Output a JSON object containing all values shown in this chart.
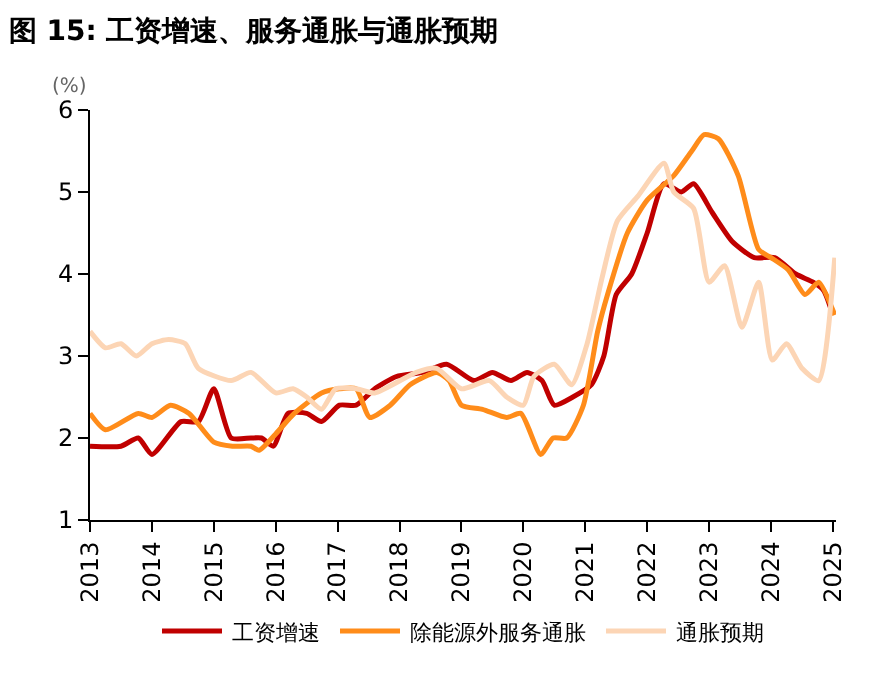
{
  "chart_data": {
    "type": "line",
    "title": "图 15: 工资增速、服务通胀与通胀预期",
    "ylabel": "(%)",
    "xlim": [
      2013,
      2025.05
    ],
    "xticks": [
      2013,
      2014,
      2015,
      2016,
      2017,
      2018,
      2019,
      2020,
      2021,
      2022,
      2023,
      2024,
      2025
    ],
    "ylim": [
      1,
      6
    ],
    "yticks": [
      1,
      2,
      3,
      4,
      5,
      6
    ],
    "legend": "bottom",
    "marker": "none",
    "line_style": "solid",
    "series": [
      {
        "name": "工资增速",
        "color": "#c00000",
        "x": [
          2013,
          2013.5,
          2013.78,
          2014.0,
          2014.47,
          2014.75,
          2015.0,
          2015.28,
          2015.6,
          2015.77,
          2015.96,
          2016.2,
          2016.5,
          2016.74,
          2017.03,
          2017.3,
          2017.6,
          2017.95,
          2018.37,
          2018.76,
          2019.2,
          2019.5,
          2019.8,
          2020.06,
          2020.3,
          2020.5,
          2020.8,
          2021.1,
          2021.3,
          2021.5,
          2021.75,
          2022.0,
          2022.27,
          2022.55,
          2022.75,
          2023.05,
          2023.37,
          2023.73,
          2024.06,
          2024.4,
          2024.68,
          2024.85,
          2025.0
        ],
        "values": [
          1.9,
          1.9,
          2.0,
          1.8,
          2.2,
          2.2,
          2.6,
          2.0,
          2.0,
          2.0,
          1.9,
          2.3,
          2.3,
          2.2,
          2.4,
          2.4,
          2.6,
          2.75,
          2.8,
          2.9,
          2.7,
          2.8,
          2.7,
          2.8,
          2.7,
          2.4,
          2.5,
          2.65,
          3.0,
          3.75,
          4.0,
          4.5,
          5.1,
          5.0,
          5.1,
          4.75,
          4.4,
          4.2,
          4.2,
          4.0,
          3.9,
          3.8,
          3.5
        ]
      },
      {
        "name": "除能源外服务通胀",
        "color": "#ff8c1a",
        "x": [
          2013,
          2013.25,
          2013.78,
          2014.0,
          2014.3,
          2014.6,
          2015.0,
          2015.3,
          2015.6,
          2015.73,
          2016.0,
          2016.3,
          2016.74,
          2017.03,
          2017.3,
          2017.52,
          2017.85,
          2018.17,
          2018.6,
          2018.8,
          2019.0,
          2019.34,
          2019.73,
          2019.96,
          2020.28,
          2020.48,
          2020.7,
          2020.97,
          2021.2,
          2021.36,
          2021.68,
          2022.0,
          2022.43,
          2022.72,
          2022.92,
          2023.15,
          2023.47,
          2023.8,
          2024.0,
          2024.28,
          2024.55,
          2024.77,
          2025.03
        ],
        "values": [
          2.3,
          2.1,
          2.3,
          2.25,
          2.4,
          2.3,
          1.95,
          1.9,
          1.9,
          1.85,
          2.05,
          2.3,
          2.55,
          2.6,
          2.6,
          2.25,
          2.4,
          2.65,
          2.8,
          2.7,
          2.4,
          2.35,
          2.25,
          2.3,
          1.8,
          2.0,
          2.0,
          2.4,
          3.3,
          3.75,
          4.5,
          4.9,
          5.2,
          5.5,
          5.7,
          5.65,
          5.2,
          4.3,
          4.2,
          4.05,
          3.75,
          3.9,
          3.5
        ]
      },
      {
        "name": "通胀预期",
        "color": "#fcd5b5",
        "x": [
          2013,
          2013.25,
          2013.5,
          2013.75,
          2014.0,
          2014.27,
          2014.54,
          2014.75,
          2015.28,
          2015.6,
          2016.0,
          2016.28,
          2016.5,
          2016.74,
          2016.97,
          2017.3,
          2017.6,
          2018.27,
          2018.6,
          2019.0,
          2019.45,
          2019.73,
          2020.0,
          2020.17,
          2020.5,
          2020.78,
          2021.03,
          2021.27,
          2021.52,
          2021.85,
          2022.27,
          2022.43,
          2022.75,
          2023.0,
          2023.25,
          2023.53,
          2023.8,
          2024.02,
          2024.25,
          2024.5,
          2024.77,
          2025.03
        ],
        "values": [
          3.3,
          3.1,
          3.15,
          3.0,
          3.15,
          3.2,
          3.15,
          2.85,
          2.7,
          2.8,
          2.55,
          2.6,
          2.5,
          2.35,
          2.6,
          2.6,
          2.55,
          2.8,
          2.85,
          2.6,
          2.7,
          2.5,
          2.4,
          2.75,
          2.9,
          2.65,
          3.15,
          3.95,
          4.65,
          4.95,
          5.35,
          5.0,
          4.8,
          3.9,
          4.1,
          3.35,
          3.9,
          2.95,
          3.15,
          2.85,
          2.7,
          4.2
        ]
      }
    ]
  }
}
